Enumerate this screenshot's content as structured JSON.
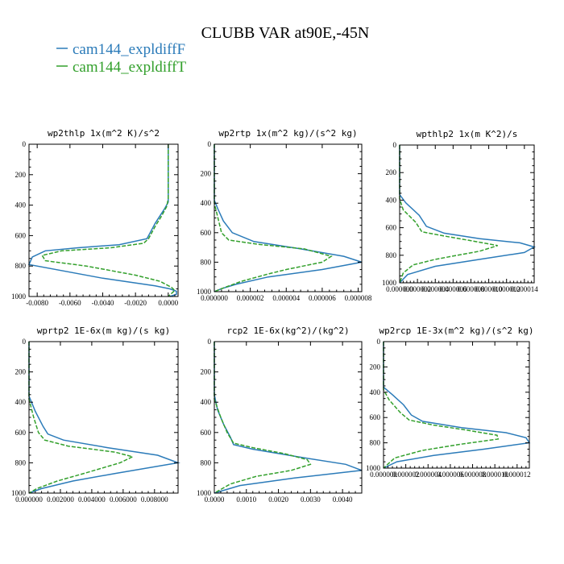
{
  "figure": {
    "title": "CLUBB VAR at90E,-45N",
    "legend": [
      {
        "label": "cam144_expldiffF",
        "color": "#2b7bb9",
        "dash": "solid"
      },
      {
        "label": "cam144_expldiffT",
        "color": "#33a02c",
        "dash": "dashed"
      }
    ]
  },
  "chart_data": [
    {
      "type": "line",
      "title": "wp2thlp   1x(m^2 K)/s^2",
      "xlim": [
        -0.0085,
        0.0006
      ],
      "ylim": [
        1000,
        0
      ],
      "x_ticks": [
        -0.008,
        -0.006,
        -0.004,
        -0.002,
        0.0
      ],
      "x_tick_labels": [
        "-0.0080",
        "-0.0060",
        "-0.0040",
        "-0.0020",
        "0.0000"
      ],
      "y_ticks": [
        0,
        200,
        400,
        600,
        800,
        1000
      ],
      "y_tick_labels": [
        "0",
        "200",
        "400",
        "600",
        "800",
        "1000"
      ],
      "series": [
        {
          "name": "cam144_expldiffF",
          "points": [
            [
              0,
              0
            ],
            [
              0,
              300
            ],
            [
              0,
              380
            ],
            [
              -0.0002,
              420
            ],
            [
              -0.0005,
              470
            ],
            [
              -0.0008,
              520
            ],
            [
              -0.001,
              560
            ],
            [
              -0.0013,
              620
            ],
            [
              -0.003,
              660
            ],
            [
              -0.0055,
              680
            ],
            [
              -0.0075,
              700
            ],
            [
              -0.0083,
              740
            ],
            [
              -0.0085,
              790
            ],
            [
              -0.004,
              880
            ],
            [
              -0.0008,
              930
            ],
            [
              0.0001,
              950
            ],
            [
              0.0005,
              965
            ],
            [
              0.0005,
              985
            ],
            [
              0.0001,
              1000
            ]
          ]
        },
        {
          "name": "cam144_expldiffT",
          "points": [
            [
              0,
              0
            ],
            [
              0,
              360
            ],
            [
              -0.0001,
              410
            ],
            [
              -0.0004,
              470
            ],
            [
              -0.0008,
              540
            ],
            [
              -0.0012,
              620
            ],
            [
              -0.0015,
              650
            ],
            [
              -0.0035,
              680
            ],
            [
              -0.0065,
              700
            ],
            [
              -0.0077,
              730
            ],
            [
              -0.0075,
              765
            ],
            [
              -0.005,
              800
            ],
            [
              -0.002,
              860
            ],
            [
              -0.0005,
              900
            ],
            [
              0.0002,
              940
            ],
            [
              0.0004,
              960
            ],
            [
              0.0002,
              980
            ],
            [
              0,
              1000
            ]
          ]
        }
      ]
    },
    {
      "type": "line",
      "title": "wp2rtp   1x(m^2 kg)/(s^2 kg)",
      "xlim": [
        0,
        8.2e-06
      ],
      "ylim": [
        1000,
        0
      ],
      "x_ticks": [
        0,
        2e-06,
        4e-06,
        6e-06,
        8e-06
      ],
      "x_tick_labels": [
        "0.000000",
        "0.000002",
        "0.000004",
        "0.000006",
        "0.000008"
      ],
      "y_ticks": [
        0,
        200,
        400,
        600,
        800,
        1000
      ],
      "y_tick_labels": [
        "0",
        "200",
        "400",
        "600",
        "800",
        "1000"
      ],
      "series": [
        {
          "name": "cam144_expldiffF",
          "points": [
            [
              0,
              0
            ],
            [
              0,
              380
            ],
            [
              2e-07,
              440
            ],
            [
              5e-07,
              520
            ],
            [
              1e-06,
              600
            ],
            [
              2.2e-06,
              660
            ],
            [
              4.8e-06,
              710
            ],
            [
              7.2e-06,
              760
            ],
            [
              8.2e-06,
              800
            ],
            [
              6e-06,
              850
            ],
            [
              3e-06,
              900
            ],
            [
              1.2e-06,
              950
            ],
            [
              4e-07,
              980
            ],
            [
              0,
              1000
            ]
          ]
        },
        {
          "name": "cam144_expldiffT",
          "points": [
            [
              0,
              0
            ],
            [
              0,
              400
            ],
            [
              2e-07,
              500
            ],
            [
              4e-07,
              600
            ],
            [
              8e-07,
              650
            ],
            [
              2.5e-06,
              680
            ],
            [
              5e-06,
              710
            ],
            [
              6.5e-06,
              760
            ],
            [
              6e-06,
              800
            ],
            [
              4e-06,
              850
            ],
            [
              3e-06,
              880
            ],
            [
              1.5e-06,
              930
            ],
            [
              4e-07,
              980
            ],
            [
              0,
              1000
            ]
          ]
        }
      ]
    },
    {
      "type": "line",
      "title": "wpthlp2   1x(m K^2)/s",
      "xlim": [
        0,
        1.51e-05
      ],
      "ylim": [
        1000,
        0
      ],
      "x_ticks": [
        0,
        2e-06,
        4e-06,
        6e-06,
        8e-06,
        1e-05,
        1.2e-05,
        1.4e-05
      ],
      "x_tick_labels": [
        "0.000000",
        "0.000002",
        "0.000004",
        "0.000006",
        "0.000008",
        "0.000010",
        "0.000012",
        "0.000014"
      ],
      "y_ticks": [
        0,
        200,
        400,
        600,
        800,
        1000
      ],
      "y_tick_labels": [
        "0",
        "200",
        "400",
        "600",
        "800",
        "1000"
      ],
      "series": [
        {
          "name": "cam144_expldiffF",
          "points": [
            [
              0,
              0
            ],
            [
              0,
              360
            ],
            [
              7e-07,
              420
            ],
            [
              2.2e-06,
              510
            ],
            [
              3e-06,
              590
            ],
            [
              5e-06,
              640
            ],
            [
              9e-06,
              680
            ],
            [
              1.35e-05,
              710
            ],
            [
              1.51e-05,
              740
            ],
            [
              1.4e-05,
              780
            ],
            [
              9e-06,
              830
            ],
            [
              4e-06,
              880
            ],
            [
              9e-07,
              940
            ],
            [
              0,
              1000
            ]
          ]
        },
        {
          "name": "cam144_expldiffT",
          "points": [
            [
              0,
              0
            ],
            [
              0,
              390
            ],
            [
              4e-07,
              470
            ],
            [
              1.8e-06,
              560
            ],
            [
              2.5e-06,
              630
            ],
            [
              5e-06,
              660
            ],
            [
              8.5e-06,
              700
            ],
            [
              1.1e-05,
              730
            ],
            [
              9e-06,
              770
            ],
            [
              4e-06,
              830
            ],
            [
              1.5e-06,
              870
            ],
            [
              4e-07,
              930
            ],
            [
              0,
              1000
            ]
          ]
        }
      ]
    },
    {
      "type": "line",
      "title": "wprtp2   1E-6x(m kg)/(s kg)",
      "xlim": [
        0,
        0.0095
      ],
      "ylim": [
        1000,
        0
      ],
      "x_ticks": [
        0,
        0.002,
        0.004,
        0.006,
        0.008
      ],
      "x_tick_labels": [
        "0.000000",
        "0.002000",
        "0.004000",
        "0.006000",
        "0.008000"
      ],
      "y_ticks": [
        0,
        200,
        400,
        600,
        800,
        1000
      ],
      "y_tick_labels": [
        "0",
        "200",
        "400",
        "600",
        "800",
        "1000"
      ],
      "series": [
        {
          "name": "cam144_expldiffF",
          "points": [
            [
              0,
              0
            ],
            [
              0,
              360
            ],
            [
              0.0004,
              460
            ],
            [
              0.0009,
              560
            ],
            [
              0.0012,
              610
            ],
            [
              0.0022,
              650
            ],
            [
              0.005,
              700
            ],
            [
              0.0082,
              750
            ],
            [
              0.0095,
              800
            ],
            [
              0.0055,
              870
            ],
            [
              0.0028,
              920
            ],
            [
              0.0008,
              970
            ],
            [
              0,
              1000
            ]
          ]
        },
        {
          "name": "cam144_expldiffT",
          "points": [
            [
              0,
              0
            ],
            [
              0,
              380
            ],
            [
              0.0003,
              500
            ],
            [
              0.0006,
              600
            ],
            [
              0.001,
              650
            ],
            [
              0.0025,
              690
            ],
            [
              0.0055,
              730
            ],
            [
              0.0066,
              760
            ],
            [
              0.0058,
              800
            ],
            [
              0.0035,
              870
            ],
            [
              0.0018,
              920
            ],
            [
              0.0005,
              970
            ],
            [
              0,
              1000
            ]
          ]
        }
      ]
    },
    {
      "type": "line",
      "title": "rcp2   1E-6x(kg^2)/(kg^2)",
      "xlim": [
        0,
        0.0046
      ],
      "ylim": [
        1000,
        0
      ],
      "x_ticks": [
        0,
        0.001,
        0.002,
        0.003,
        0.004
      ],
      "x_tick_labels": [
        "0.0000",
        "0.0010",
        "0.0020",
        "0.0030",
        "0.0040"
      ],
      "y_ticks": [
        0,
        200,
        400,
        600,
        800,
        1000
      ],
      "y_tick_labels": [
        "0",
        "200",
        "400",
        "600",
        "800",
        "1000"
      ],
      "series": [
        {
          "name": "cam144_expldiffF",
          "points": [
            [
              0,
              0
            ],
            [
              0,
              350
            ],
            [
              0.0001,
              450
            ],
            [
              0.0003,
              550
            ],
            [
              0.0005,
              630
            ],
            [
              0.0006,
              680
            ],
            [
              0.0012,
              710
            ],
            [
              0.0026,
              760
            ],
            [
              0.0041,
              810
            ],
            [
              0.0046,
              850
            ],
            [
              0.0025,
              900
            ],
            [
              0.0008,
              950
            ],
            [
              0,
              1000
            ]
          ]
        },
        {
          "name": "cam144_expldiffT",
          "points": [
            [
              0,
              0
            ],
            [
              0,
              380
            ],
            [
              0.0002,
              500
            ],
            [
              0.0004,
              600
            ],
            [
              0.0006,
              670
            ],
            [
              0.0012,
              700
            ],
            [
              0.0022,
              740
            ],
            [
              0.0029,
              780
            ],
            [
              0.003,
              810
            ],
            [
              0.0024,
              850
            ],
            [
              0.0013,
              890
            ],
            [
              0.0005,
              940
            ],
            [
              0,
              1000
            ]
          ]
        }
      ]
    },
    {
      "type": "line",
      "title": "wp2rcp   1E-3x(m^2 kg)/(s^2 kg)",
      "xlim": [
        0,
        1.31e-05
      ],
      "ylim": [
        1000,
        0
      ],
      "x_ticks": [
        0,
        2e-06,
        4e-06,
        6e-06,
        8e-06,
        1e-05,
        1.2e-05
      ],
      "x_tick_labels": [
        "0.000000",
        "0.000002",
        "0.000004",
        "0.000006",
        "0.000008",
        "0.000010",
        "0.000012"
      ],
      "y_ticks": [
        0,
        200,
        400,
        600,
        800,
        1000
      ],
      "y_tick_labels": [
        "0",
        "200",
        "400",
        "600",
        "800",
        "1000"
      ],
      "series": [
        {
          "name": "cam144_expldiffF",
          "points": [
            [
              0,
              0
            ],
            [
              0,
              360
            ],
            [
              8e-07,
              420
            ],
            [
              1.8e-06,
              500
            ],
            [
              2.5e-06,
              580
            ],
            [
              3.5e-06,
              630
            ],
            [
              7e-06,
              680
            ],
            [
              1.1e-05,
              720
            ],
            [
              1.28e-05,
              760
            ],
            [
              1.31e-05,
              800
            ],
            [
              9e-06,
              850
            ],
            [
              4.5e-06,
              900
            ],
            [
              1.2e-06,
              950
            ],
            [
              0,
              1000
            ]
          ]
        },
        {
          "name": "cam144_expldiffT",
          "points": [
            [
              0,
              0
            ],
            [
              0,
              380
            ],
            [
              5e-07,
              460
            ],
            [
              1.5e-06,
              560
            ],
            [
              2.3e-06,
              620
            ],
            [
              4.5e-06,
              660
            ],
            [
              7.5e-06,
              700
            ],
            [
              1.02e-05,
              740
            ],
            [
              1.03e-05,
              770
            ],
            [
              7e-06,
              810
            ],
            [
              3.5e-06,
              860
            ],
            [
              1e-06,
              920
            ],
            [
              0,
              1000
            ]
          ]
        }
      ]
    }
  ]
}
